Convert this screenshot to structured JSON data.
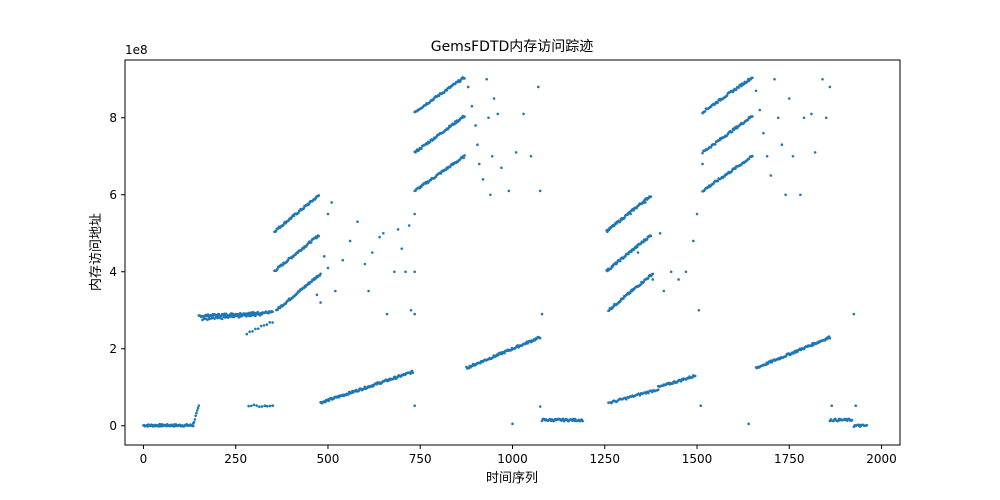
{
  "chart_data": {
    "type": "scatter",
    "title": "GemsFDTD内存访问踪迹",
    "xlabel": "时间序列",
    "ylabel": "内存访问地址",
    "y_offset_label": "1e8",
    "xlim": [
      -50,
      2050
    ],
    "ylim": [
      -0.5,
      9.5
    ],
    "x_ticks": [
      0,
      250,
      500,
      750,
      1000,
      1250,
      1500,
      1750,
      2000
    ],
    "y_ticks": [
      0,
      2,
      4,
      6,
      8
    ],
    "grid": false,
    "legend": "none",
    "marker_color": "#1f77b4",
    "segments": [
      {
        "x0": 0,
        "x1": 135,
        "y0": 0.01,
        "y1": 0.01,
        "n": 70
      },
      {
        "x0": 135,
        "x1": 150,
        "y0": 0.05,
        "y1": 0.5,
        "n": 8
      },
      {
        "x0": 150,
        "x1": 350,
        "y0": 2.85,
        "y1": 2.95,
        "n": 90
      },
      {
        "x0": 160,
        "x1": 320,
        "y0": 2.75,
        "y1": 2.9,
        "n": 40
      },
      {
        "x0": 280,
        "x1": 350,
        "y0": 2.4,
        "y1": 2.7,
        "n": 10
      },
      {
        "x0": 285,
        "x1": 350,
        "y0": 0.52,
        "y1": 0.52,
        "n": 10
      },
      {
        "x0": 355,
        "x1": 475,
        "y0": 5.05,
        "y1": 5.98,
        "n": 60
      },
      {
        "x0": 355,
        "x1": 475,
        "y0": 4.02,
        "y1": 4.95,
        "n": 60
      },
      {
        "x0": 360,
        "x1": 480,
        "y0": 3.0,
        "y1": 3.95,
        "n": 60
      },
      {
        "x0": 480,
        "x1": 730,
        "y0": 0.6,
        "y1": 1.4,
        "n": 120
      },
      {
        "x0": 735,
        "x1": 870,
        "y0": 8.15,
        "y1": 9.05,
        "n": 60
      },
      {
        "x0": 735,
        "x1": 870,
        "y0": 7.1,
        "y1": 8.05,
        "n": 60
      },
      {
        "x0": 735,
        "x1": 870,
        "y0": 6.1,
        "y1": 7.0,
        "n": 60
      },
      {
        "x0": 875,
        "x1": 1075,
        "y0": 1.5,
        "y1": 2.3,
        "n": 90
      },
      {
        "x0": 1080,
        "x1": 1130,
        "y0": 0.15,
        "y1": 0.15,
        "n": 25
      },
      {
        "x0": 1130,
        "x1": 1190,
        "y0": 0.15,
        "y1": 0.15,
        "n": 25
      },
      {
        "x0": 1255,
        "x1": 1375,
        "y0": 5.05,
        "y1": 5.98,
        "n": 60
      },
      {
        "x0": 1255,
        "x1": 1375,
        "y0": 4.02,
        "y1": 4.95,
        "n": 60
      },
      {
        "x0": 1260,
        "x1": 1380,
        "y0": 3.0,
        "y1": 3.95,
        "n": 60
      },
      {
        "x0": 1265,
        "x1": 1395,
        "y0": 0.6,
        "y1": 0.95,
        "n": 40
      },
      {
        "x0": 1395,
        "x1": 1495,
        "y0": 1.0,
        "y1": 1.3,
        "n": 40
      },
      {
        "x0": 1515,
        "x1": 1650,
        "y0": 8.15,
        "y1": 9.05,
        "n": 60
      },
      {
        "x0": 1515,
        "x1": 1650,
        "y0": 7.1,
        "y1": 8.05,
        "n": 60
      },
      {
        "x0": 1515,
        "x1": 1650,
        "y0": 6.1,
        "y1": 7.0,
        "n": 60
      },
      {
        "x0": 1660,
        "x1": 1860,
        "y0": 1.5,
        "y1": 2.3,
        "n": 90
      },
      {
        "x0": 1860,
        "x1": 1920,
        "y0": 0.15,
        "y1": 0.15,
        "n": 25
      },
      {
        "x0": 1925,
        "x1": 1960,
        "y0": 0.0,
        "y1": 0.0,
        "n": 15
      }
    ],
    "points": [
      [
        350,
        0.52
      ],
      [
        330,
        0.52
      ],
      [
        735,
        0.52
      ],
      [
        735,
        2.9
      ],
      [
        735,
        5.5
      ],
      [
        735,
        4.0
      ],
      [
        700,
        4.6
      ],
      [
        690,
        5.1
      ],
      [
        650,
        5.0
      ],
      [
        640,
        4.9
      ],
      [
        620,
        4.5
      ],
      [
        600,
        4.2
      ],
      [
        580,
        5.3
      ],
      [
        560,
        4.8
      ],
      [
        540,
        4.3
      ],
      [
        520,
        3.5
      ],
      [
        500,
        4.1
      ],
      [
        480,
        3.2
      ],
      [
        490,
        4.4
      ],
      [
        500,
        5.5
      ],
      [
        510,
        5.8
      ],
      [
        470,
        3.4
      ],
      [
        610,
        3.5
      ],
      [
        660,
        2.9
      ],
      [
        680,
        4.0
      ],
      [
        710,
        4.0
      ],
      [
        720,
        5.2
      ],
      [
        725,
        3.0
      ],
      [
        880,
        8.8
      ],
      [
        890,
        8.3
      ],
      [
        900,
        7.8
      ],
      [
        905,
        7.3
      ],
      [
        910,
        6.8
      ],
      [
        920,
        6.4
      ],
      [
        930,
        9.0
      ],
      [
        935,
        8.0
      ],
      [
        940,
        6.0
      ],
      [
        945,
        7.0
      ],
      [
        950,
        8.5
      ],
      [
        960,
        8.1
      ],
      [
        970,
        6.7
      ],
      [
        990,
        6.1
      ],
      [
        1010,
        7.1
      ],
      [
        1030,
        8.1
      ],
      [
        1050,
        7.0
      ],
      [
        1070,
        8.8
      ],
      [
        1075,
        6.1
      ],
      [
        1080,
        2.9
      ],
      [
        1075,
        0.5
      ],
      [
        1000,
        0.05
      ],
      [
        1130,
        0.15
      ],
      [
        1260,
        0.6
      ],
      [
        1320,
        5.5
      ],
      [
        1340,
        4.5
      ],
      [
        1360,
        5.8
      ],
      [
        1380,
        3.8
      ],
      [
        1400,
        5.0
      ],
      [
        1410,
        3.5
      ],
      [
        1430,
        4.0
      ],
      [
        1450,
        3.8
      ],
      [
        1470,
        4.0
      ],
      [
        1490,
        4.8
      ],
      [
        1500,
        5.5
      ],
      [
        1505,
        3.0
      ],
      [
        1510,
        0.52
      ],
      [
        1515,
        6.8
      ],
      [
        1640,
        0.05
      ],
      [
        1660,
        8.7
      ],
      [
        1670,
        8.2
      ],
      [
        1680,
        7.6
      ],
      [
        1690,
        7.0
      ],
      [
        1700,
        6.5
      ],
      [
        1710,
        9.0
      ],
      [
        1720,
        8.0
      ],
      [
        1730,
        7.3
      ],
      [
        1740,
        6.0
      ],
      [
        1750,
        8.5
      ],
      [
        1760,
        7.0
      ],
      [
        1780,
        6.0
      ],
      [
        1790,
        8.0
      ],
      [
        1810,
        8.1
      ],
      [
        1820,
        7.1
      ],
      [
        1840,
        9.0
      ],
      [
        1850,
        8.0
      ],
      [
        1860,
        8.8
      ],
      [
        1865,
        0.52
      ],
      [
        1930,
        0.52
      ],
      [
        1925,
        2.9
      ],
      [
        1940,
        0.02
      ]
    ]
  }
}
